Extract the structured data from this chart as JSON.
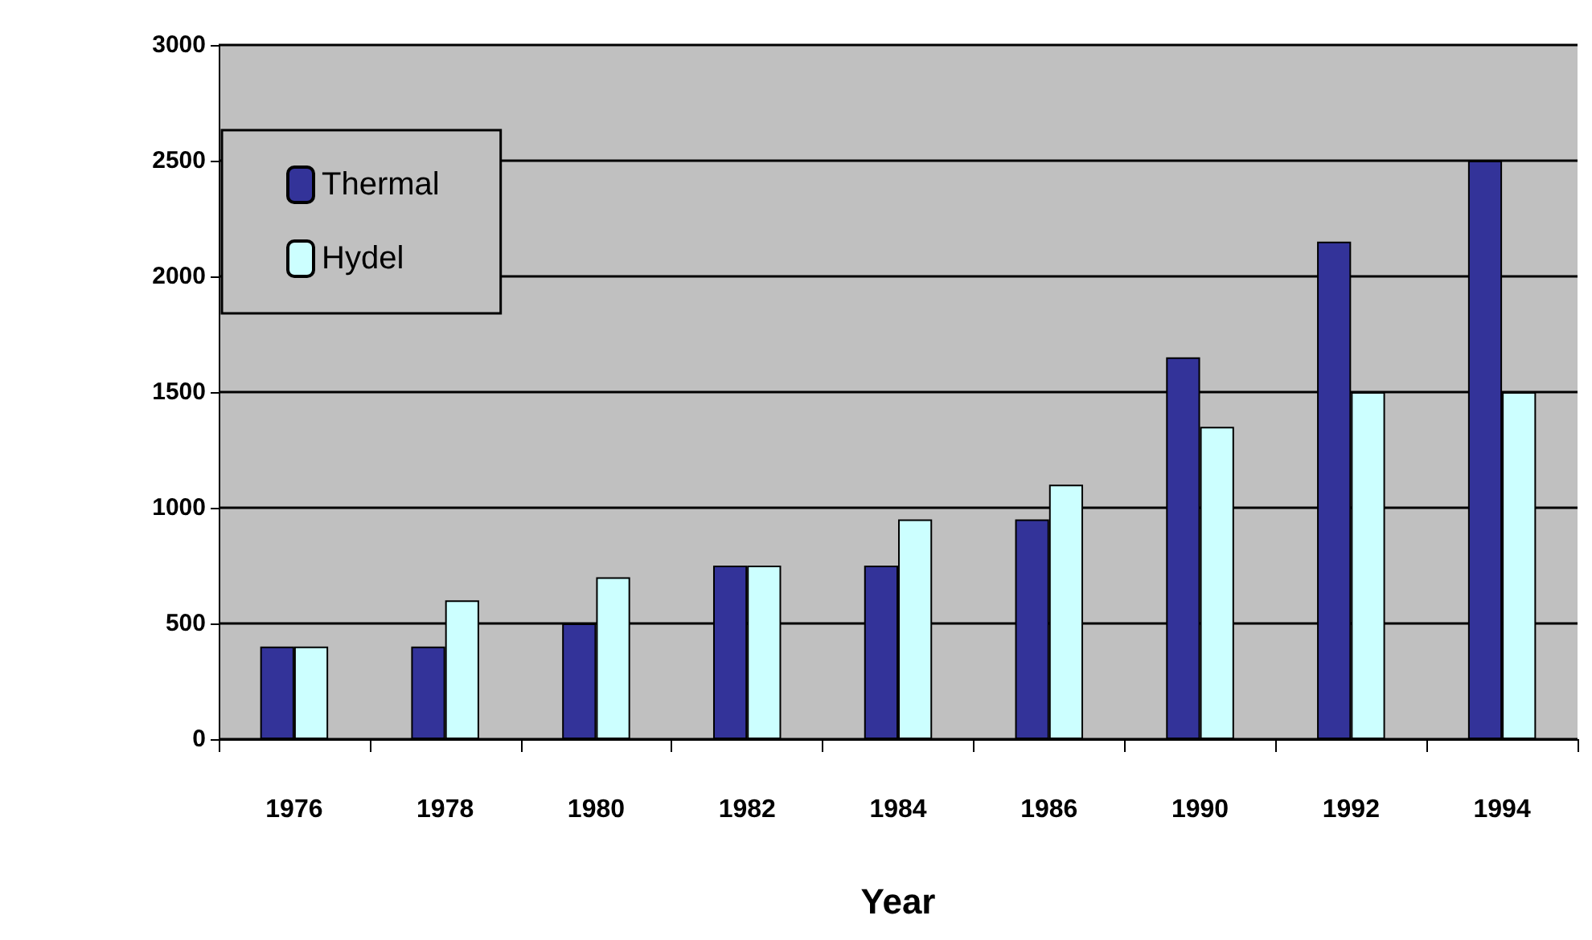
{
  "chart_data": {
    "type": "bar",
    "xlabel": "Year",
    "categories": [
      "1976",
      "1978",
      "1980",
      "1982",
      "1984",
      "1986",
      "1990",
      "1992",
      "1994"
    ],
    "series": [
      {
        "name": "Thermal",
        "color": "#333399",
        "values": [
          400,
          400,
          500,
          750,
          750,
          950,
          1650,
          2150,
          2500
        ]
      },
      {
        "name": "Hydel",
        "color": "#ccffff",
        "values": [
          400,
          600,
          700,
          750,
          950,
          1100,
          1350,
          1500,
          1500
        ]
      }
    ],
    "ylim": [
      0,
      3000
    ],
    "yticks": [
      0,
      500,
      1000,
      1500,
      2000,
      2500,
      3000
    ],
    "grid": "y",
    "legend": "top left"
  }
}
